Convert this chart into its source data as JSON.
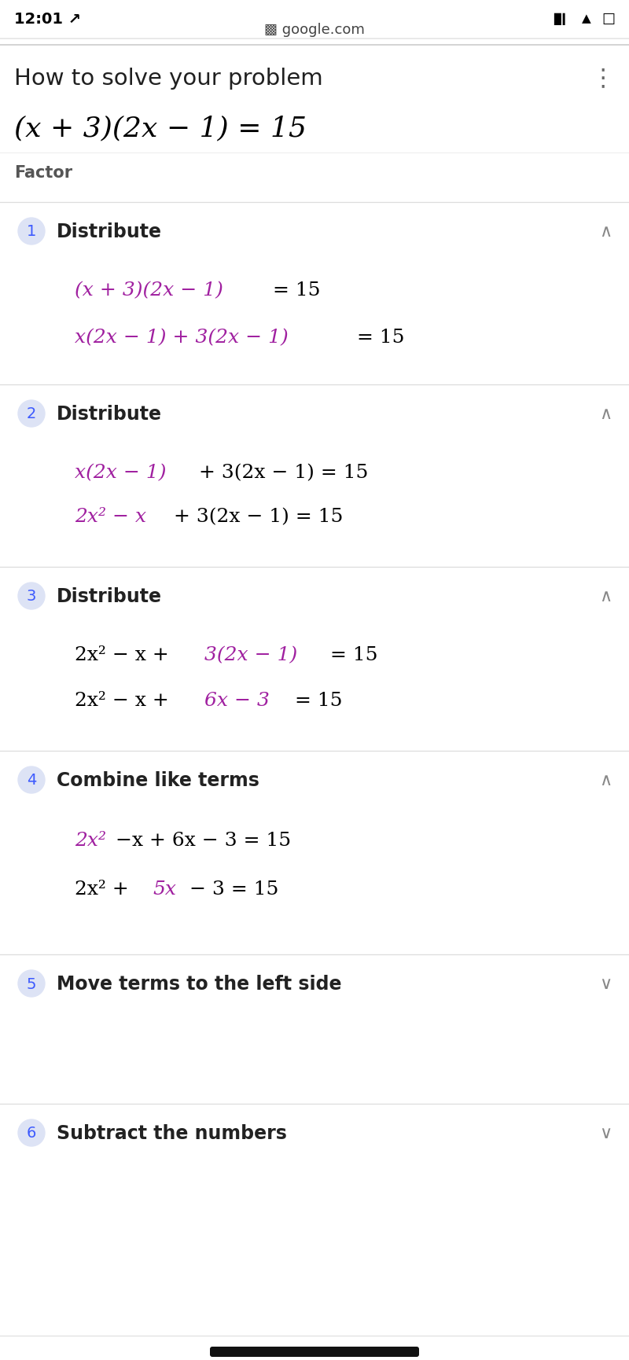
{
  "bg_color": "#ffffff",
  "status_bar_time": "12:01 ↗",
  "url": "▩ google.com",
  "title": "How to solve your problem",
  "main_eq_parts": [
    {
      "text": "(x + 3)(2x − 1) = 15",
      "color": "#000000",
      "style": "italic",
      "size": 26
    }
  ],
  "factor_label": "Factor",
  "steps": [
    {
      "num": "1",
      "label": "Distribute",
      "open": true,
      "lines": [
        [
          {
            "text": "(x + 3)(2x − 1)",
            "color": "#a020a0",
            "style": "italic"
          },
          {
            "text": " = 15",
            "color": "#000000",
            "style": "normal"
          }
        ],
        [
          {
            "text": "x(2x − 1) + 3(2x − 1)",
            "color": "#a020a0",
            "style": "italic"
          },
          {
            "text": " = 15",
            "color": "#000000",
            "style": "normal"
          }
        ]
      ]
    },
    {
      "num": "2",
      "label": "Distribute",
      "open": true,
      "lines": [
        [
          {
            "text": "x(2x − 1)",
            "color": "#a020a0",
            "style": "italic"
          },
          {
            "text": " + 3(2x − 1) = 15",
            "color": "#000000",
            "style": "normal"
          }
        ],
        [
          {
            "text": "2x² − x",
            "color": "#a020a0",
            "style": "italic"
          },
          {
            "text": " + 3(2x − 1) = 15",
            "color": "#000000",
            "style": "normal"
          }
        ]
      ]
    },
    {
      "num": "3",
      "label": "Distribute",
      "open": true,
      "lines": [
        [
          {
            "text": "2x² − x + ",
            "color": "#000000",
            "style": "normal"
          },
          {
            "text": "3(2x − 1)",
            "color": "#a020a0",
            "style": "italic"
          },
          {
            "text": " = 15",
            "color": "#000000",
            "style": "normal"
          }
        ],
        [
          {
            "text": "2x² − x + ",
            "color": "#000000",
            "style": "normal"
          },
          {
            "text": "6x − 3",
            "color": "#a020a0",
            "style": "italic"
          },
          {
            "text": " = 15",
            "color": "#000000",
            "style": "normal"
          }
        ]
      ]
    },
    {
      "num": "4",
      "label": "Combine like terms",
      "open": true,
      "lines": [
        [
          {
            "text": "2x²",
            "color": "#a020a0",
            "style": "italic"
          },
          {
            "text": "−x + 6x − 3 = 15",
            "color": "#000000",
            "style": "normal"
          }
        ],
        [
          {
            "text": "2x² + ",
            "color": "#000000",
            "style": "normal"
          },
          {
            "text": "5x",
            "color": "#a020a0",
            "style": "italic"
          },
          {
            "text": " − 3 = 15",
            "color": "#000000",
            "style": "normal"
          }
        ]
      ]
    },
    {
      "num": "5",
      "label": "Move terms to the left side",
      "open": false,
      "lines": []
    },
    {
      "num": "6",
      "label": "Subtract the numbers",
      "open": false,
      "lines": []
    }
  ],
  "circle_bg": "#dde3f5",
  "circle_fg": "#3d5afe",
  "divider_color": "#dddddd",
  "header_color": "#222222",
  "caret_color": "#888888",
  "eq_indent": 95,
  "eq_fontsize": 18,
  "step_header_fontsize": 17,
  "step_num_fontsize": 14
}
